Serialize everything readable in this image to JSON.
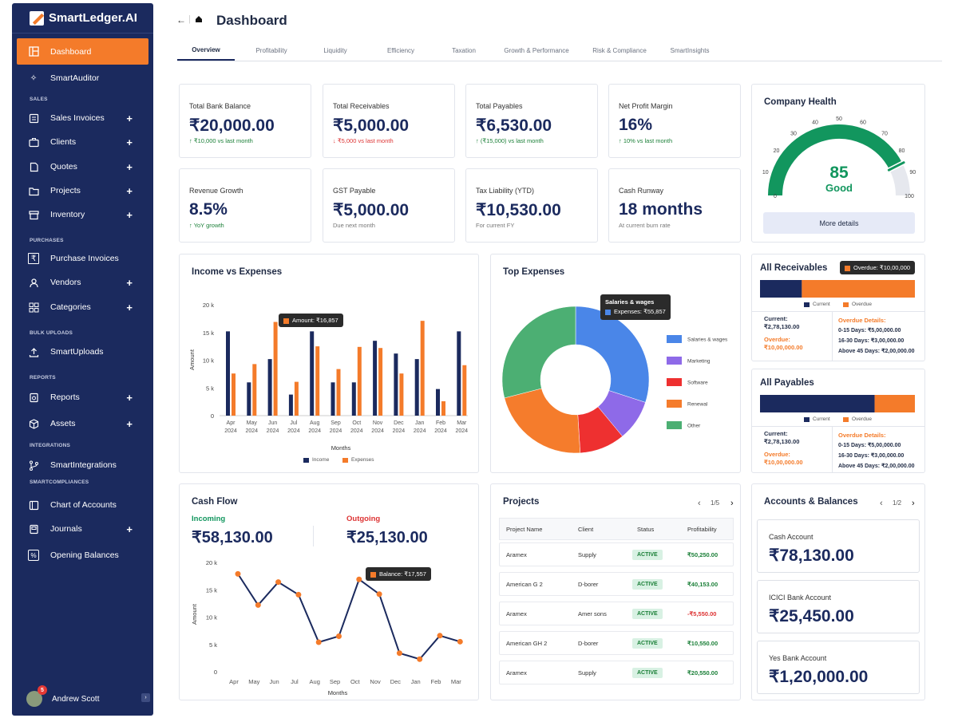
{
  "app": {
    "brand": "SmartLedger.AI",
    "page_title": "Dashboard"
  },
  "sidebar": {
    "sections": {
      "sales": "SALES",
      "purchases": "PURCHASES",
      "bulk": "BULK UPLOADS",
      "reports": "REPORTS",
      "integrations": "INTEGRATIONS",
      "compliances": "SMARTCOMPLIANCES"
    },
    "items": {
      "dashboard": "Dashboard",
      "auditor": "SmartAuditor",
      "sales_invoices": "Sales Invoices",
      "clients": "Clients",
      "quotes": "Quotes",
      "projects": "Projects",
      "inventory": "Inventory",
      "purchase_invoices": "Purchase Invoices",
      "vendors": "Vendors",
      "categories": "Categories",
      "uploads": "SmartUploads",
      "reports": "Reports",
      "assets": "Assets",
      "integrations": "SmartIntegrations",
      "coa": "Chart of Accounts",
      "journals": "Journals",
      "opening": "Opening Balances"
    },
    "user": {
      "name": "Andrew Scott",
      "notifications": "5"
    }
  },
  "tabs": [
    "Overview",
    "Profitability",
    "Liquidity",
    "Efficiency",
    "Taxation",
    "Growth & Performance",
    "Risk & Compliance",
    "SmartInsights"
  ],
  "kpis": [
    {
      "label": "Total Bank Balance",
      "value": "₹20,000.00",
      "sub": "↑ ₹10,000 vs last month"
    },
    {
      "label": "Total Receivables",
      "value": "₹5,000.00",
      "sub": "↓ ₹5,000 vs last month"
    },
    {
      "label": "Total Payables",
      "value": "₹6,530.00",
      "sub": "↑ (₹15,000) vs last month"
    },
    {
      "label": "Net Profit Margin",
      "value": "16%",
      "sub": "↑ 10% vs last month"
    },
    {
      "label": "Revenue Growth",
      "value": "8.5%",
      "sub": "↑ YoY growth"
    },
    {
      "label": "GST Payable",
      "value": "₹5,000.00",
      "sub": "Due next month"
    },
    {
      "label": "Tax Liability (YTD)",
      "value": "₹10,530.00",
      "sub": "For current FY"
    },
    {
      "label": "Cash Runway",
      "value": "18 months",
      "sub": "At current burn rate"
    }
  ],
  "health": {
    "title": "Company Health",
    "score": "85",
    "score_value": 85,
    "status": "Good",
    "button": "More details",
    "ticks": [
      "0",
      "10",
      "20",
      "30",
      "40",
      "50",
      "60",
      "70",
      "80",
      "90",
      "100"
    ]
  },
  "income_expenses": {
    "title": "Income vs Expenses",
    "tooltip": "Amount: ₹16,857",
    "legend_income": "Income",
    "legend_expenses": "Expenses"
  },
  "top_expenses": {
    "title": "Top Expenses",
    "tooltip_title": "Salaries & wages",
    "tooltip_value": "Expenses: ₹55,857"
  },
  "receivables": {
    "title": "All Receivables",
    "tooltip": "Overdue: ₹10,00,000",
    "current_fraction": 0.27,
    "legend_current": "Current",
    "legend_overdue": "Overdue",
    "current_label": "Current:",
    "current_value": "₹2,78,130.00",
    "overdue_label": "Overdue:",
    "overdue_value": "₹10,00,000.00",
    "details_title": "Overdue Details:",
    "d1": "0-15 Days: ₹5,00,000.00",
    "d2": "16-30 Days: ₹3,00,000.00",
    "d3": "Above 45 Days: ₹2,00,000.00"
  },
  "payables": {
    "title": "All Payables",
    "current_fraction": 0.74,
    "legend_current": "Current",
    "legend_overdue": "Overdue",
    "current_label": "Current:",
    "current_value": "₹2,78,130.00",
    "overdue_label": "Overdue:",
    "overdue_value": "₹10,00,000.00",
    "details_title": "Overdue Details:",
    "d1": "0-15 Days: ₹5,00,000.00",
    "d2": "16-30 Days: ₹3,00,000.00",
    "d3": "Above 45 Days: ₹2,00,000.00"
  },
  "cashflow": {
    "title": "Cash Flow",
    "incoming_label": "Incoming",
    "incoming_value": "₹58,130.00",
    "outgoing_label": "Outgoing",
    "outgoing_value": "₹25,130.00",
    "tooltip": "Balance: ₹17,557"
  },
  "projects": {
    "title": "Projects",
    "page": "1/5",
    "headers": [
      "Project Name",
      "Client",
      "Status",
      "Profitability"
    ],
    "rows": [
      {
        "name": "Aramex",
        "client": "Supply",
        "status": "ACTIVE",
        "profit": "₹50,250.00"
      },
      {
        "name": "American G 2",
        "client": "D-borer",
        "status": "ACTIVE",
        "profit": "₹40,153.00"
      },
      {
        "name": "Aramex",
        "client": "Amer sons",
        "status": "ACTIVE",
        "profit": "-₹5,550.00"
      },
      {
        "name": "American GH 2",
        "client": "D-borer",
        "status": "ACTIVE",
        "profit": "₹10,550.00"
      },
      {
        "name": "Aramex",
        "client": "Supply",
        "status": "ACTIVE",
        "profit": "₹20,550.00"
      }
    ]
  },
  "accounts": {
    "title": "Accounts & Balances",
    "page": "1/2",
    "items": [
      {
        "name": "Cash Account",
        "value": "₹78,130.00"
      },
      {
        "name": "ICICI Bank Account",
        "value": "₹25,450.00"
      },
      {
        "name": "Yes Bank Account",
        "value": "₹1,20,000.00"
      }
    ]
  },
  "colors": {
    "navy": "#1b2a5e",
    "orange": "#f47b2a",
    "green": "#12965e"
  },
  "chart_data": [
    {
      "type": "bar",
      "title": "Income vs Expenses",
      "xlabel": "Months",
      "ylabel": "Amount",
      "ylim": [
        0,
        20000
      ],
      "yticks": [
        "0",
        "5 k",
        "10 k",
        "15 k",
        "20 k"
      ],
      "categories": [
        "Apr 2024",
        "May 2024",
        "Jun 2024",
        "Jul 2024",
        "Aug 2024",
        "Sep 2024",
        "Oct 2024",
        "Nov 2024",
        "Dec 2024",
        "Jan 2024",
        "Feb 2024",
        "Mar 2024"
      ],
      "series": [
        {
          "name": "Income",
          "values": [
            15200,
            6000,
            10200,
            3800,
            15200,
            6000,
            6000,
            13500,
            11200,
            10200,
            4800,
            15200
          ]
        },
        {
          "name": "Expenses",
          "values": [
            7600,
            9300,
            16900,
            6100,
            12500,
            8400,
            12400,
            12200,
            7600,
            17100,
            2600,
            9100
          ]
        }
      ]
    },
    {
      "type": "pie",
      "title": "Top Expenses",
      "labels": [
        "Salaries & wages",
        "Marketing",
        "Software",
        "Renewal",
        "Other"
      ],
      "values": [
        30,
        9,
        10,
        22,
        29
      ],
      "colors": [
        "#4a86e8",
        "#8e6ae8",
        "#ee3030",
        "#f57c2c",
        "#4caf73"
      ]
    },
    {
      "type": "line",
      "title": "Cash Flow",
      "xlabel": "Months",
      "ylabel": "Amount",
      "ylim": [
        0,
        20000
      ],
      "yticks": [
        "0",
        "5 k",
        "10 k",
        "15 k",
        "20 k"
      ],
      "categories": [
        "Apr",
        "May",
        "Jun",
        "Jul",
        "Aug",
        "Sep",
        "Oct",
        "Nov",
        "Dec",
        "Jan",
        "Feb",
        "Mar"
      ],
      "values": [
        17900,
        12200,
        16400,
        14100,
        5400,
        6500,
        16900,
        14200,
        3400,
        2300,
        6600,
        5500
      ]
    }
  ]
}
